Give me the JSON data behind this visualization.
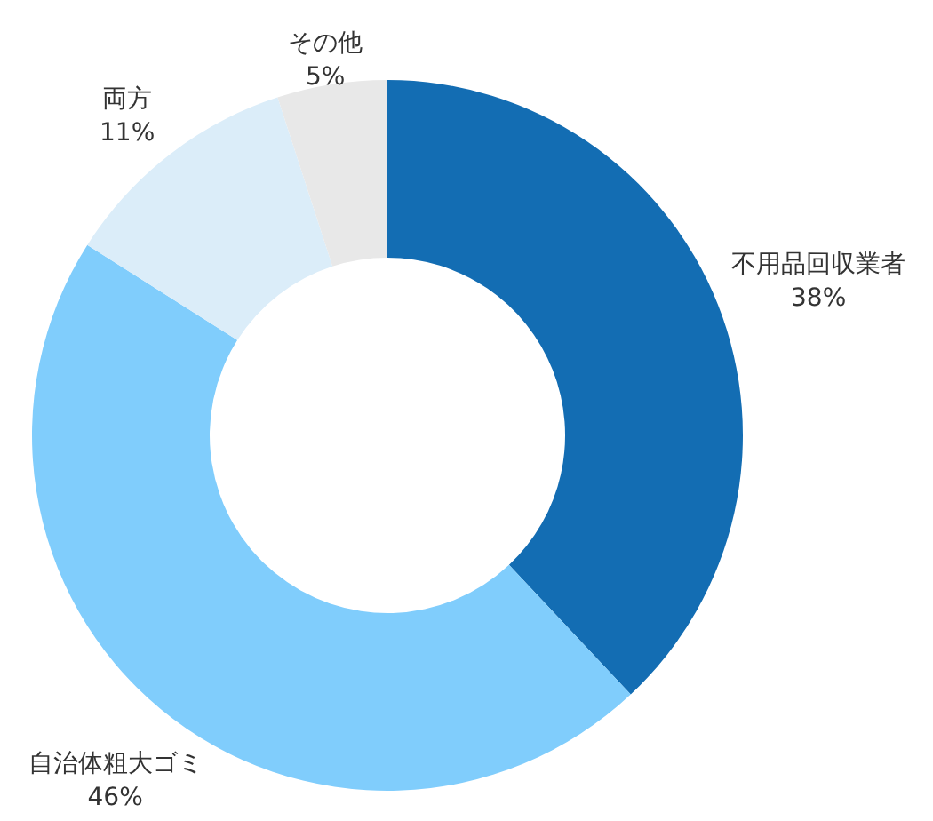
{
  "chart_data": {
    "type": "donut",
    "categories": [
      "不用品回収業者",
      "自治体粗大ゴミ",
      "両方",
      "その他"
    ],
    "values": [
      38,
      46,
      11,
      5
    ],
    "value_labels": [
      "38%",
      "46%",
      "11%",
      "5%"
    ],
    "colors": [
      "#136db3",
      "#80cdfc",
      "#dbedf9",
      "#e8e8e8"
    ]
  }
}
